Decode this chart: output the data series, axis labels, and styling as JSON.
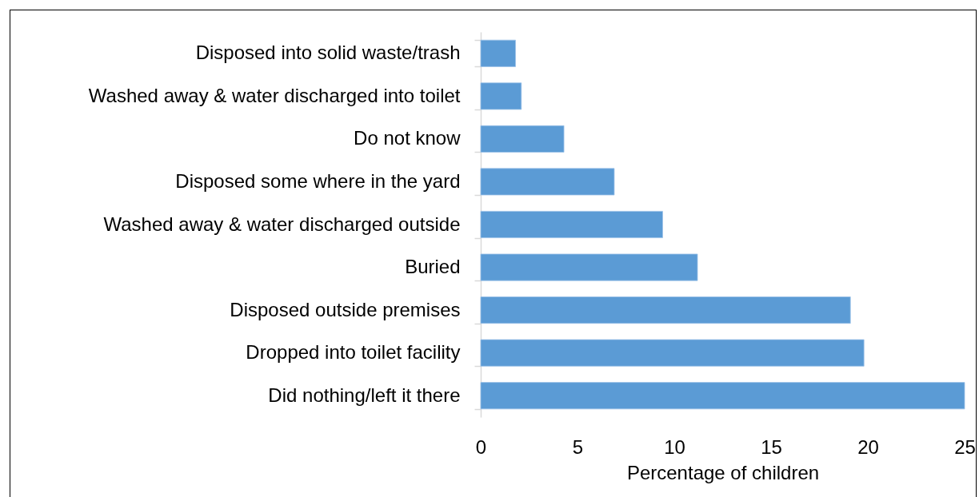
{
  "chart_data": {
    "type": "bar",
    "orientation": "horizontal",
    "categories": [
      "Disposed into solid waste/trash",
      "Washed away & water discharged into toilet",
      "Do not know",
      "Disposed some where in the yard",
      "Washed away & water discharged outside",
      "Buried",
      "Disposed outside premises",
      "Dropped into toilet facility",
      "Did nothing/left it there"
    ],
    "values": [
      1.8,
      2.1,
      4.3,
      6.9,
      9.4,
      11.2,
      19.1,
      19.8,
      25.0
    ],
    "color": "#5b9bd5",
    "xlabel": "Percentage of children",
    "xlim": [
      0,
      25
    ],
    "xticks": [
      0,
      5,
      10,
      15,
      20,
      25
    ]
  }
}
